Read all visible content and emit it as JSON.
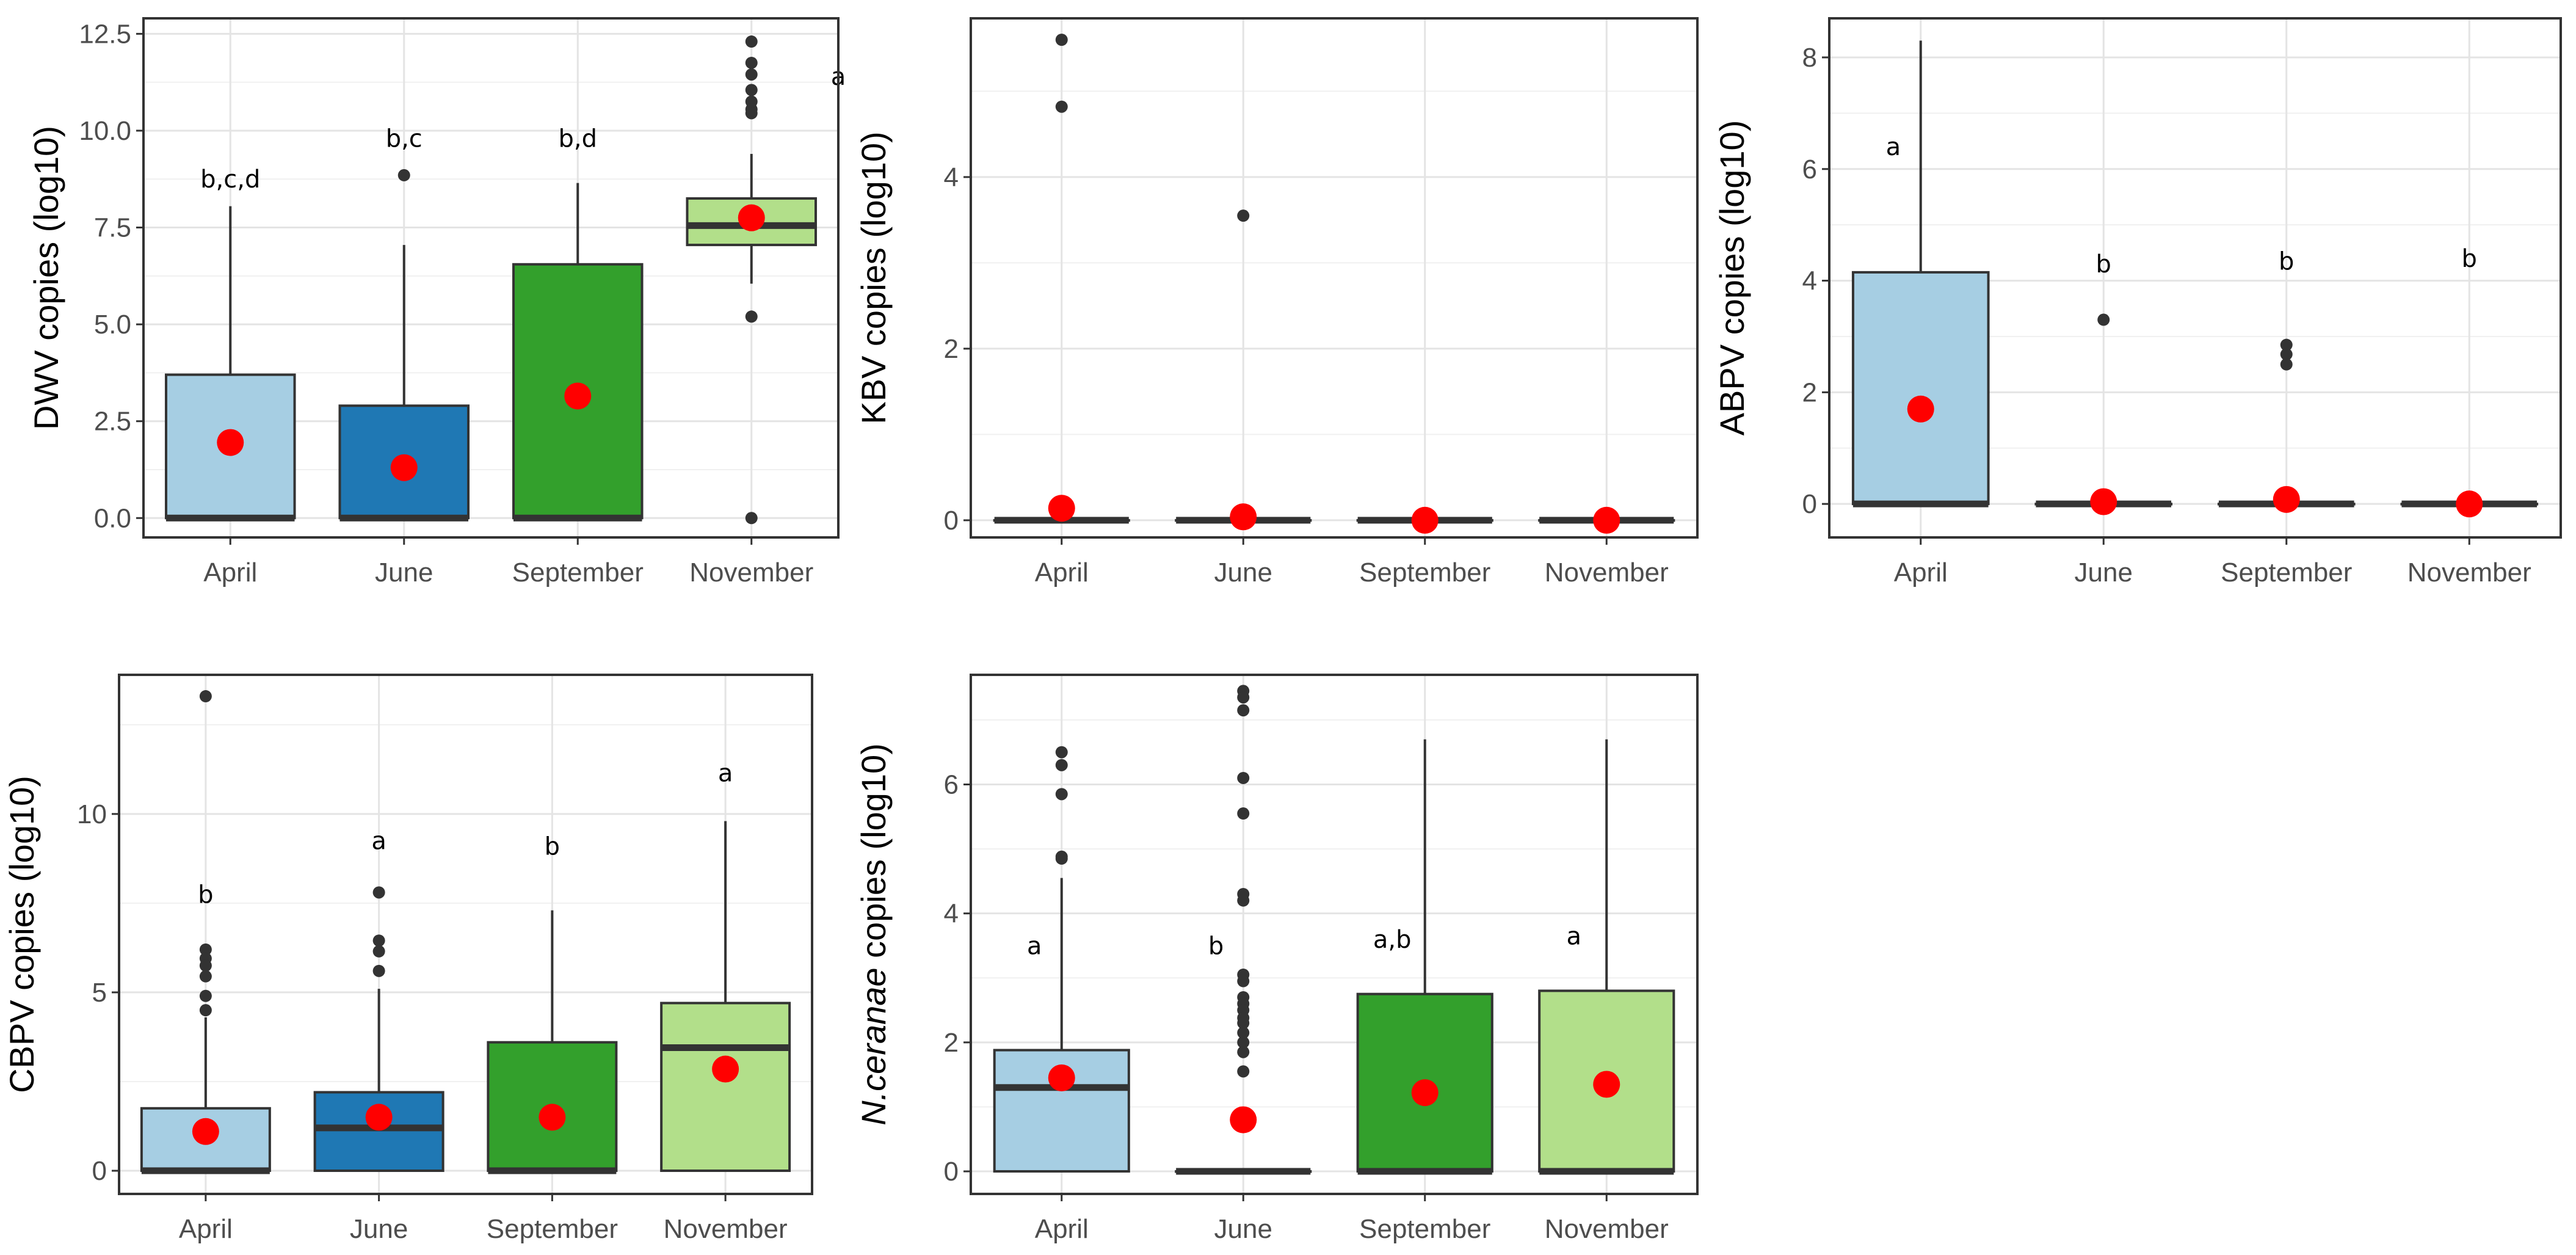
{
  "chart_data": [
    {
      "type": "boxplot",
      "id": "dwv",
      "ylabel": "DWV copies (log10)",
      "ylim": [
        -0.5,
        12.9
      ],
      "yticks": [
        0,
        2.5,
        5,
        7.5,
        10,
        12.5
      ],
      "ytick_labels": [
        "0.0",
        "2.5",
        "5.0",
        "7.5",
        "10.0",
        "12.5"
      ],
      "categories": [
        "April",
        "June",
        "September",
        "November"
      ],
      "colors": [
        "#a6cee3",
        "#1f78b4",
        "#33a02c",
        "#b2df8a"
      ],
      "boxes": [
        {
          "q1": 0,
          "median": 0,
          "q3": 3.7,
          "whisker_low": 0,
          "whisker_high": 8.05,
          "mean": 1.95,
          "outliers": []
        },
        {
          "q1": 0,
          "median": 0,
          "q3": 2.9,
          "whisker_low": 0,
          "whisker_high": 7.05,
          "mean": 1.3,
          "outliers": [
            8.85
          ]
        },
        {
          "q1": 0,
          "median": 0,
          "q3": 6.55,
          "whisker_low": 0,
          "whisker_high": 8.65,
          "mean": 3.15,
          "outliers": []
        },
        {
          "q1": 7.05,
          "median": 7.55,
          "q3": 8.25,
          "whisker_low": 6.05,
          "whisker_high": 9.4,
          "mean": 7.75,
          "outliers": [
            12.3,
            11.75,
            11.45,
            11.05,
            10.75,
            10.55,
            10.45,
            5.2,
            0
          ]
        }
      ],
      "sig_labels": [
        {
          "category": "April",
          "text": "b,c,d",
          "y": 8.75
        },
        {
          "category": "June",
          "text": "b,c",
          "y": 9.8
        },
        {
          "category": "September",
          "text": "b,d",
          "y": 9.8
        },
        {
          "category": "November",
          "text": "a",
          "y": 11.4,
          "offset": 0.5
        }
      ]
    },
    {
      "type": "boxplot",
      "id": "kbv",
      "ylabel": "KBV copies (log10)",
      "ylim": [
        -0.2,
        5.85
      ],
      "yticks": [
        0,
        2,
        4
      ],
      "ytick_labels": [
        "0",
        "2",
        "4"
      ],
      "categories": [
        "April",
        "June",
        "September",
        "November"
      ],
      "colors": [
        "#a6cee3",
        "#1f78b4",
        "#33a02c",
        "#b2df8a"
      ],
      "boxes": [
        {
          "q1": 0,
          "median": 0,
          "q3": 0,
          "whisker_low": 0,
          "whisker_high": 0,
          "mean": 0.14,
          "outliers": [
            5.6,
            4.82
          ]
        },
        {
          "q1": 0,
          "median": 0,
          "q3": 0,
          "whisker_low": 0,
          "whisker_high": 0,
          "mean": 0.04,
          "outliers": [
            3.55
          ]
        },
        {
          "q1": 0,
          "median": 0,
          "q3": 0,
          "whisker_low": 0,
          "whisker_high": 0,
          "mean": 0,
          "outliers": []
        },
        {
          "q1": 0,
          "median": 0,
          "q3": 0,
          "whisker_low": 0,
          "whisker_high": 0,
          "mean": 0,
          "outliers": []
        }
      ],
      "sig_labels": []
    },
    {
      "type": "boxplot",
      "id": "abpv",
      "ylabel": "ABPV copies (log10)",
      "ylim": [
        -0.6,
        8.7
      ],
      "yticks": [
        0,
        2,
        4,
        6,
        8
      ],
      "ytick_labels": [
        "0",
        "2",
        "4",
        "6",
        "8"
      ],
      "categories": [
        "April",
        "June",
        "September",
        "November"
      ],
      "colors": [
        "#a6cee3",
        "#1f78b4",
        "#33a02c",
        "#b2df8a"
      ],
      "boxes": [
        {
          "q1": 0,
          "median": 0,
          "q3": 4.15,
          "whisker_low": 0,
          "whisker_high": 8.3,
          "mean": 1.7,
          "outliers": []
        },
        {
          "q1": 0,
          "median": 0,
          "q3": 0,
          "whisker_low": 0,
          "whisker_high": 0,
          "mean": 0.04,
          "outliers": [
            3.3
          ]
        },
        {
          "q1": 0,
          "median": 0,
          "q3": 0,
          "whisker_low": 0,
          "whisker_high": 0,
          "mean": 0.08,
          "outliers": [
            2.85,
            2.68,
            2.5
          ]
        },
        {
          "q1": 0,
          "median": 0,
          "q3": 0,
          "whisker_low": 0,
          "whisker_high": 0,
          "mean": 0,
          "outliers": []
        }
      ],
      "sig_labels": [
        {
          "category": "April",
          "text": "a",
          "y": 6.4,
          "offset": -0.15
        },
        {
          "category": "June",
          "text": "b",
          "y": 4.3
        },
        {
          "category": "September",
          "text": "b",
          "y": 4.35
        },
        {
          "category": "November",
          "text": "b",
          "y": 4.4
        }
      ]
    },
    {
      "type": "boxplot",
      "id": "cbpv",
      "ylabel": "CBPV copies (log10)",
      "ylim": [
        -0.65,
        13.9
      ],
      "yticks": [
        0,
        5,
        10
      ],
      "ytick_labels": [
        "0",
        "5",
        "10"
      ],
      "categories": [
        "April",
        "June",
        "September",
        "November"
      ],
      "colors": [
        "#a6cee3",
        "#1f78b4",
        "#33a02c",
        "#b2df8a"
      ],
      "boxes": [
        {
          "q1": 0,
          "median": 0,
          "q3": 1.75,
          "whisker_low": 0,
          "whisker_high": 4.3,
          "mean": 1.1,
          "outliers": [
            13.3,
            6.2,
            5.95,
            5.75,
            5.45,
            4.9,
            4.5
          ]
        },
        {
          "q1": 0,
          "median": 1.2,
          "q3": 2.2,
          "whisker_low": 0,
          "whisker_high": 5.1,
          "mean": 1.5,
          "outliers": [
            7.8,
            6.45,
            6.15,
            5.6
          ]
        },
        {
          "q1": 0,
          "median": 0,
          "q3": 3.6,
          "whisker_low": 0,
          "whisker_high": 7.3,
          "mean": 1.5,
          "outliers": []
        },
        {
          "q1": 0,
          "median": 3.45,
          "q3": 4.7,
          "whisker_low": 0,
          "whisker_high": 9.8,
          "mean": 2.85,
          "outliers": []
        }
      ],
      "sig_labels": [
        {
          "category": "April",
          "text": "b",
          "y": 7.75
        },
        {
          "category": "June",
          "text": "a",
          "y": 9.25
        },
        {
          "category": "September",
          "text": "b",
          "y": 9.1
        },
        {
          "category": "November",
          "text": "a",
          "y": 11.15
        }
      ]
    },
    {
      "type": "boxplot",
      "id": "nceranae",
      "ylabel": "N.ceranae copies (log10)",
      "ylabel_italic_part": "N.ceranae",
      "ylabel_rest": " copies (log10)",
      "ylim": [
        -0.35,
        7.7
      ],
      "yticks": [
        0,
        2,
        4,
        6
      ],
      "ytick_labels": [
        "0",
        "2",
        "4",
        "6"
      ],
      "categories": [
        "April",
        "June",
        "September",
        "November"
      ],
      "colors": [
        "#a6cee3",
        "#1f78b4",
        "#33a02c",
        "#b2df8a"
      ],
      "boxes": [
        {
          "q1": 0,
          "median": 1.3,
          "q3": 1.88,
          "whisker_low": 0,
          "whisker_high": 4.55,
          "mean": 1.45,
          "outliers": [
            6.5,
            6.3,
            5.85,
            4.88,
            4.85
          ]
        },
        {
          "q1": 0,
          "median": 0,
          "q3": 0,
          "whisker_low": 0,
          "whisker_high": 0,
          "mean": 0.8,
          "outliers": [
            7.45,
            7.35,
            7.15,
            6.1,
            5.55,
            4.3,
            4.2,
            3.05,
            2.95,
            2.7,
            2.6,
            2.5,
            2.38,
            2.3,
            2.15,
            2.0,
            1.85,
            1.55
          ]
        },
        {
          "q1": 0,
          "median": 0,
          "q3": 2.75,
          "whisker_low": 0,
          "whisker_high": 6.7,
          "mean": 1.22,
          "outliers": []
        },
        {
          "q1": 0,
          "median": 0,
          "q3": 2.8,
          "whisker_low": 0,
          "whisker_high": 6.7,
          "mean": 1.35,
          "outliers": []
        }
      ],
      "sig_labels": [
        {
          "category": "April",
          "text": "a",
          "y": 3.5,
          "offset": -0.15
        },
        {
          "category": "June",
          "text": "b",
          "y": 3.5,
          "offset": -0.15
        },
        {
          "category": "September",
          "text": "a,b",
          "y": 3.6,
          "offset": -0.18
        },
        {
          "category": "November",
          "text": "a",
          "y": 3.65,
          "offset": -0.18
        }
      ]
    }
  ]
}
